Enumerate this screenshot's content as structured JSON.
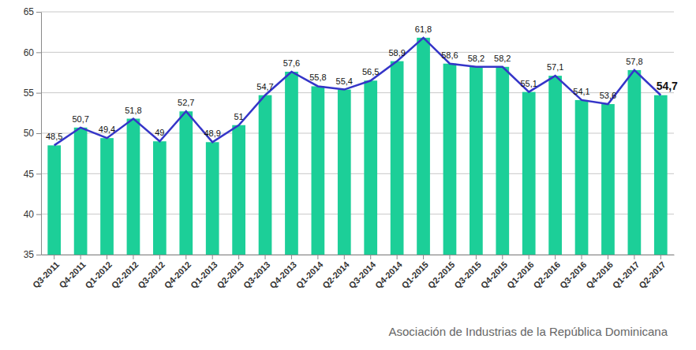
{
  "chart_data": {
    "type": "bar",
    "categories": [
      "Q3-2011",
      "Q4-2011",
      "Q1-2012",
      "Q2-2012",
      "Q3-2012",
      "Q4-2012",
      "Q1-2013",
      "Q2-2013",
      "Q3-2013",
      "Q4-2013",
      "Q1-2014",
      "Q2-2014",
      "Q3-2014",
      "Q4-2014",
      "Q1-2015",
      "Q2-2015",
      "Q3-2015",
      "Q4-2015",
      "Q1-2016",
      "Q2-2016",
      "Q3-2016",
      "Q4-2016",
      "Q1-2017",
      "Q2-2017"
    ],
    "series": [
      {
        "type": "bar",
        "color": "#1ccf98",
        "values": [
          48.5,
          50.7,
          49.4,
          51.8,
          49,
          52.7,
          48.9,
          51,
          54.7,
          57.6,
          55.8,
          55.4,
          56.5,
          58.9,
          61.8,
          58.6,
          58.2,
          58.2,
          55.1,
          57.1,
          54.1,
          53.6,
          57.8,
          54.7
        ]
      },
      {
        "type": "line",
        "color": "#3535c8",
        "values": [
          48.5,
          50.7,
          49.4,
          51.8,
          49,
          52.7,
          48.9,
          51,
          54.7,
          57.6,
          55.8,
          55.4,
          56.5,
          58.9,
          61.8,
          58.6,
          58.2,
          58.2,
          55.1,
          57.1,
          54.1,
          53.6,
          57.8,
          54.7
        ],
        "value_labels": [
          "48,5",
          "50,7",
          "49,4",
          "51,8",
          "49",
          "52,7",
          "48,9",
          "51",
          "54,7",
          "57,6",
          "55,8",
          "55,4",
          "56,5",
          "58,9",
          "61,8",
          "58,6",
          "58,2",
          "58,2",
          "55,1",
          "57,1",
          "54,1",
          "53,6",
          "57,8",
          "54,7"
        ]
      }
    ],
    "ylim": [
      35,
      65
    ],
    "yticks": [
      35,
      40,
      45,
      50,
      55,
      60,
      65
    ],
    "grid": true,
    "data_labels": true,
    "annotations": [
      "Asociación de Industrias de la República Dominicana"
    ]
  }
}
